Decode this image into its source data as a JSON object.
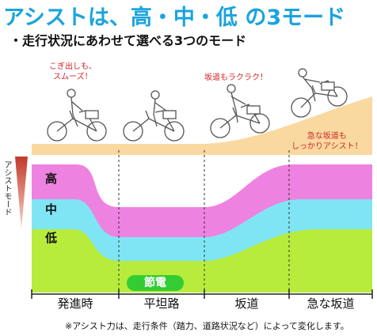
{
  "title": {
    "part1": "アシストは、",
    "part2": "高・中・低",
    "part3": " の3モード"
  },
  "subtitle": "・走行状況にあわせて選べる3つのモード",
  "bubbles": [
    {
      "text": "こぎ出しも、\nスムーズ！"
    },
    {
      "text": "坂道もラクラク！"
    },
    {
      "text": "急な坂道も\nしっかりアシスト！"
    }
  ],
  "axis_title": "アシストモード",
  "modes": [
    {
      "label": "高",
      "color": "#ee82e0"
    },
    {
      "label": "中",
      "color": "#7fe5f5"
    },
    {
      "label": "低",
      "color": "#b8ec3c"
    }
  ],
  "eco_badge": "節電",
  "categories": [
    "発進時",
    "平坦路",
    "坂道",
    "急な坂道"
  ],
  "note": "※アシスト力は、走行条件（踏力、道路状況など）によって変化します。",
  "colors": {
    "title_accent": "#1aa4dc",
    "road": "#f9d9a0",
    "arrow": "#c0392b"
  }
}
